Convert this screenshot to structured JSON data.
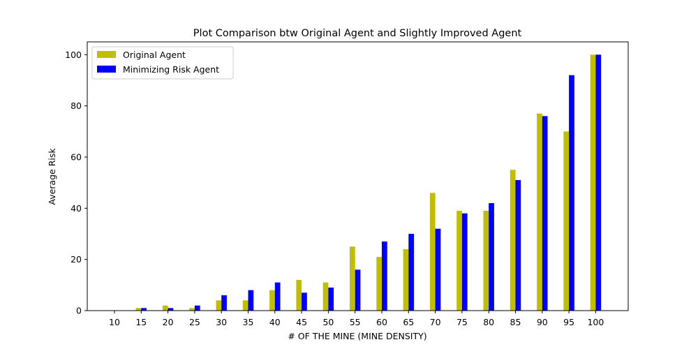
{
  "chart_data": {
    "type": "bar",
    "title": "Plot Comparison btw Original Agent and Slightly Improved Agent",
    "xlabel": "# OF THE MINE (MINE DENSITY)",
    "ylabel": "Average Risk",
    "categories": [
      "10",
      "15",
      "20",
      "25",
      "30",
      "35",
      "40",
      "45",
      "50",
      "55",
      "60",
      "65",
      "70",
      "75",
      "80",
      "85",
      "90",
      "95",
      "100"
    ],
    "ylim": [
      0,
      105
    ],
    "yticks": [
      "0",
      "20",
      "40",
      "60",
      "80",
      "100"
    ],
    "legend_position": "top-left",
    "series": [
      {
        "name": "Original Agent",
        "color": "#bfbf00",
        "values": [
          0,
          1,
          2,
          1,
          4,
          4,
          8,
          12,
          11,
          25,
          21,
          24,
          46,
          39,
          39,
          55,
          77,
          70,
          100
        ]
      },
      {
        "name": "Minimizing Risk Agent",
        "color": "#0000ff",
        "values": [
          0,
          1,
          1,
          2,
          6,
          8,
          11,
          7,
          9,
          16,
          27,
          30,
          32,
          38,
          42,
          51,
          76,
          92,
          100
        ]
      }
    ]
  }
}
